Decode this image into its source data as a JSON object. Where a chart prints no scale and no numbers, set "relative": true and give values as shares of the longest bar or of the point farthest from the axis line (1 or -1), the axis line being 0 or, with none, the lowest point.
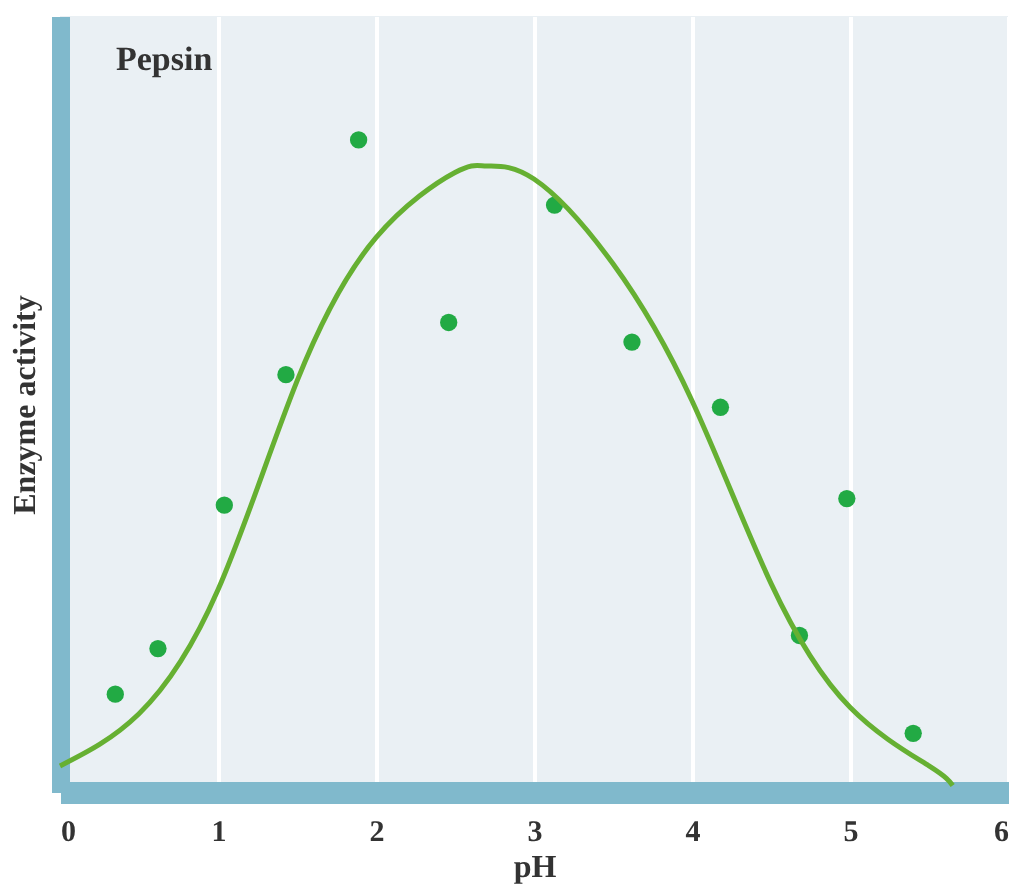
{
  "chart_data": {
    "type": "scatter",
    "relative": true,
    "xlabel": "pH",
    "ylabel": "Enzyme activity",
    "annotations": [
      "Pepsin"
    ],
    "xlim": [
      0,
      6
    ],
    "xticks": [
      0,
      1,
      2,
      3,
      4,
      5,
      6
    ],
    "grid": "x",
    "series": [
      {
        "marker": "circle",
        "color": "#22aa44",
        "x": [
          0.35,
          0.62,
          1.04,
          1.43,
          1.89,
          2.46,
          3.13,
          3.62,
          4.18,
          4.68,
          4.98,
          5.4
        ],
        "values": [
          0.15,
          0.22,
          0.44,
          0.64,
          1,
          0.72,
          0.9,
          0.69,
          0.59,
          0.24,
          0.45,
          0.09
        ]
      },
      {
        "type": "line",
        "color": "#66b032",
        "x": [
          0,
          0.5,
          1,
          1.5,
          2,
          2.5,
          2.7,
          3,
          3.5,
          4,
          4.5,
          5,
          5.5,
          5.65
        ],
        "values": [
          0.04,
          0.12,
          0.31,
          0.63,
          0.85,
          0.95,
          0.96,
          0.94,
          0.81,
          0.6,
          0.32,
          0.13,
          0.04,
          0.01
        ]
      }
    ]
  }
}
